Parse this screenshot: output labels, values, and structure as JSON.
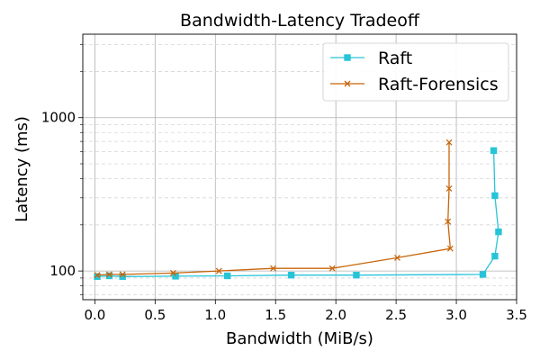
{
  "chart_data": {
    "type": "line",
    "title": "Bandwidth-Latency Tradeoff",
    "xlabel": "Bandwidth (MiB/s)",
    "ylabel": "Latency (ms)",
    "xlim": [
      -0.1,
      3.5
    ],
    "ylim": [
      65,
      3500
    ],
    "yscale": "log",
    "xticks": [
      "0.0",
      "0.5",
      "1.0",
      "1.5",
      "2.0",
      "2.5",
      "3.0",
      "3.5"
    ],
    "yticks": [
      "100",
      "1000"
    ],
    "grid": true,
    "legend_position": "top-right",
    "series": [
      {
        "name": "Raft",
        "color": "#27c4d8",
        "marker": "square",
        "points": [
          [
            0.02,
            92
          ],
          [
            0.12,
            93
          ],
          [
            0.23,
            92
          ],
          [
            0.67,
            92.5
          ],
          [
            1.1,
            93
          ],
          [
            1.63,
            94
          ],
          [
            2.17,
            94
          ],
          [
            3.22,
            95
          ],
          [
            3.32,
            125
          ],
          [
            3.35,
            180
          ],
          [
            3.32,
            310
          ],
          [
            3.31,
            610
          ]
        ]
      },
      {
        "name": "Raft-Forensics",
        "color": "#c8650b",
        "marker": "x",
        "points": [
          [
            0.02,
            94
          ],
          [
            0.12,
            95
          ],
          [
            0.23,
            95
          ],
          [
            0.65,
            97
          ],
          [
            1.03,
            100
          ],
          [
            1.48,
            104
          ],
          [
            1.97,
            104
          ],
          [
            2.51,
            122
          ],
          [
            2.95,
            140
          ],
          [
            2.93,
            210
          ],
          [
            2.94,
            345
          ],
          [
            2.94,
            690
          ]
        ]
      }
    ]
  }
}
